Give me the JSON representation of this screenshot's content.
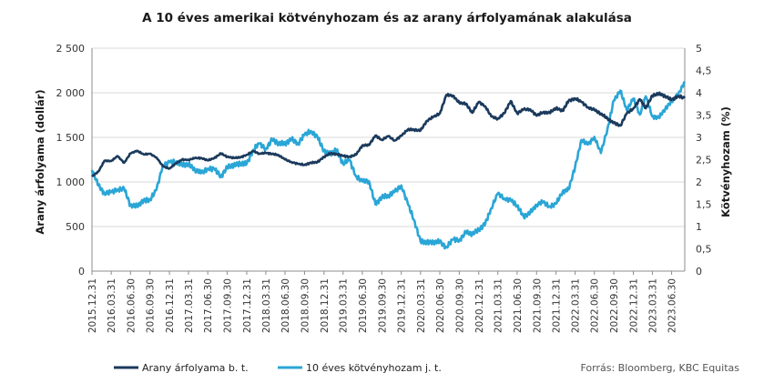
{
  "chart_data": {
    "type": "line",
    "title": "A 10 éves amerikai kötvényhozam és az arany árfolyamának alakulása",
    "ylabel_left": "Arany árfolyama (dollár)",
    "ylabel_right": "Kötvényhozam  (%)",
    "ylim_left": [
      0,
      2500
    ],
    "ylim_right": [
      0,
      5
    ],
    "yticks_left": [
      "0",
      "500",
      "1 000",
      "1 500",
      "2 000",
      "2 500"
    ],
    "yticks_right": [
      "0",
      "0,5",
      "1",
      "1,5",
      "2",
      "2,5",
      "3",
      "3,5",
      "4",
      "4,5",
      "5"
    ],
    "x_categories": [
      "2015.12.31",
      "2016.03.31",
      "2016.06.30",
      "2016.09.30",
      "2016.12.31",
      "2017.03.31",
      "2017.06.30",
      "2017.09.30",
      "2017.12.31",
      "2018.03.31",
      "2018.06.30",
      "2018.09.30",
      "2018.12.31",
      "2019.03.31",
      "2019.06.30",
      "2019.09.30",
      "2019.12.31",
      "2020.03.31",
      "2020.06.30",
      "2020.09.30",
      "2020.12.31",
      "2021.03.31",
      "2021.06.30",
      "2021.09.30",
      "2021.12.31",
      "2022.03.31",
      "2022.06.30",
      "2022.09.30",
      "2022.12.31",
      "2023.03.31",
      "2023.06.30"
    ],
    "grid": true,
    "legend_position": "bottom-left",
    "source": "Forrás: Bloomberg, KBC Equitas",
    "series": [
      {
        "name": "Arany árfolyama b. t.",
        "axis": "left",
        "color": "#1b3a5c",
        "points": [
          [
            "2015.12.31",
            1060
          ],
          [
            "2016.01.31",
            1118
          ],
          [
            "2016.02.28",
            1238
          ],
          [
            "2016.03.31",
            1235
          ],
          [
            "2016.04.30",
            1290
          ],
          [
            "2016.05.31",
            1215
          ],
          [
            "2016.06.30",
            1320
          ],
          [
            "2016.07.31",
            1350
          ],
          [
            "2016.08.31",
            1310
          ],
          [
            "2016.09.30",
            1315
          ],
          [
            "2016.10.31",
            1275
          ],
          [
            "2016.11.30",
            1175
          ],
          [
            "2016.12.31",
            1150
          ],
          [
            "2017.01.31",
            1210
          ],
          [
            "2017.02.28",
            1250
          ],
          [
            "2017.03.31",
            1248
          ],
          [
            "2017.04.30",
            1268
          ],
          [
            "2017.05.31",
            1268
          ],
          [
            "2017.06.30",
            1242
          ],
          [
            "2017.07.31",
            1268
          ],
          [
            "2017.08.31",
            1320
          ],
          [
            "2017.09.30",
            1282
          ],
          [
            "2017.10.31",
            1270
          ],
          [
            "2017.11.30",
            1275
          ],
          [
            "2017.12.31",
            1305
          ],
          [
            "2018.01.31",
            1345
          ],
          [
            "2018.02.28",
            1318
          ],
          [
            "2018.03.31",
            1325
          ],
          [
            "2018.04.30",
            1315
          ],
          [
            "2018.05.31",
            1300
          ],
          [
            "2018.06.30",
            1252
          ],
          [
            "2018.07.31",
            1223
          ],
          [
            "2018.08.31",
            1201
          ],
          [
            "2018.09.30",
            1192
          ],
          [
            "2018.10.31",
            1215
          ],
          [
            "2018.11.30",
            1222
          ],
          [
            "2018.12.31",
            1282
          ],
          [
            "2019.01.31",
            1320
          ],
          [
            "2019.02.28",
            1313
          ],
          [
            "2019.03.31",
            1292
          ],
          [
            "2019.04.30",
            1283
          ],
          [
            "2019.05.31",
            1305
          ],
          [
            "2019.06.30",
            1409
          ],
          [
            "2019.07.31",
            1413
          ],
          [
            "2019.08.31",
            1520
          ],
          [
            "2019.09.30",
            1472
          ],
          [
            "2019.10.31",
            1513
          ],
          [
            "2019.11.30",
            1464
          ],
          [
            "2019.12.31",
            1517
          ],
          [
            "2020.01.31",
            1589
          ],
          [
            "2020.02.29",
            1585
          ],
          [
            "2020.03.31",
            1577
          ],
          [
            "2020.04.30",
            1686
          ],
          [
            "2020.05.31",
            1730
          ],
          [
            "2020.06.30",
            1768
          ],
          [
            "2020.07.31",
            1975
          ],
          [
            "2020.08.31",
            1968
          ],
          [
            "2020.09.30",
            1887
          ],
          [
            "2020.10.31",
            1879
          ],
          [
            "2020.11.30",
            1776
          ],
          [
            "2020.12.31",
            1898
          ],
          [
            "2021.01.31",
            1848
          ],
          [
            "2021.02.28",
            1734
          ],
          [
            "2021.03.31",
            1708
          ],
          [
            "2021.04.30",
            1769
          ],
          [
            "2021.05.31",
            1907
          ],
          [
            "2021.06.30",
            1770
          ],
          [
            "2021.07.31",
            1814
          ],
          [
            "2021.08.31",
            1814
          ],
          [
            "2021.09.30",
            1743
          ],
          [
            "2021.10.31",
            1783
          ],
          [
            "2021.11.30",
            1775
          ],
          [
            "2021.12.31",
            1829
          ],
          [
            "2022.01.31",
            1797
          ],
          [
            "2022.02.28",
            1909
          ],
          [
            "2022.03.31",
            1937
          ],
          [
            "2022.04.30",
            1897
          ],
          [
            "2022.05.31",
            1838
          ],
          [
            "2022.06.30",
            1807
          ],
          [
            "2022.07.31",
            1766
          ],
          [
            "2022.08.31",
            1711
          ],
          [
            "2022.09.30",
            1661
          ],
          [
            "2022.10.31",
            1633
          ],
          [
            "2022.11.30",
            1768
          ],
          [
            "2022.12.31",
            1824
          ],
          [
            "2023.01.31",
            1928
          ],
          [
            "2023.02.28",
            1827
          ],
          [
            "2023.03.31",
            1969
          ],
          [
            "2023.04.30",
            1990
          ],
          [
            "2023.05.31",
            1963
          ],
          [
            "2023.06.30",
            1919
          ],
          [
            "2023.07.31",
            1965
          ],
          [
            "2023.08.31",
            1940
          ]
        ]
      },
      {
        "name": "10 éves kötvényhozam j. t.",
        "axis": "right",
        "color": "#2aa6d6",
        "points": [
          [
            "2015.12.31",
            2.27
          ],
          [
            "2016.01.31",
            1.92
          ],
          [
            "2016.02.28",
            1.74
          ],
          [
            "2016.03.31",
            1.77
          ],
          [
            "2016.04.30",
            1.83
          ],
          [
            "2016.05.31",
            1.85
          ],
          [
            "2016.06.30",
            1.47
          ],
          [
            "2016.07.31",
            1.46
          ],
          [
            "2016.08.31",
            1.58
          ],
          [
            "2016.09.30",
            1.6
          ],
          [
            "2016.10.31",
            1.83
          ],
          [
            "2016.11.30",
            2.38
          ],
          [
            "2016.12.31",
            2.44
          ],
          [
            "2017.01.31",
            2.45
          ],
          [
            "2017.02.28",
            2.39
          ],
          [
            "2017.03.31",
            2.39
          ],
          [
            "2017.04.30",
            2.28
          ],
          [
            "2017.05.31",
            2.2
          ],
          [
            "2017.06.30",
            2.3
          ],
          [
            "2017.07.31",
            2.29
          ],
          [
            "2017.08.31",
            2.12
          ],
          [
            "2017.09.30",
            2.33
          ],
          [
            "2017.10.31",
            2.38
          ],
          [
            "2017.11.30",
            2.41
          ],
          [
            "2017.12.31",
            2.41
          ],
          [
            "2018.01.31",
            2.72
          ],
          [
            "2018.02.28",
            2.86
          ],
          [
            "2018.03.31",
            2.74
          ],
          [
            "2018.04.30",
            2.95
          ],
          [
            "2018.05.31",
            2.86
          ],
          [
            "2018.06.30",
            2.86
          ],
          [
            "2018.07.31",
            2.96
          ],
          [
            "2018.08.31",
            2.86
          ],
          [
            "2018.09.30",
            3.06
          ],
          [
            "2018.10.31",
            3.14
          ],
          [
            "2018.11.30",
            3.01
          ],
          [
            "2018.12.31",
            2.69
          ],
          [
            "2019.01.31",
            2.63
          ],
          [
            "2019.02.28",
            2.72
          ],
          [
            "2019.03.31",
            2.41
          ],
          [
            "2019.04.30",
            2.5
          ],
          [
            "2019.05.31",
            2.13
          ],
          [
            "2019.06.30",
            2.01
          ],
          [
            "2019.07.31",
            2.02
          ],
          [
            "2019.08.31",
            1.5
          ],
          [
            "2019.09.30",
            1.66
          ],
          [
            "2019.10.31",
            1.69
          ],
          [
            "2019.11.30",
            1.78
          ],
          [
            "2019.12.31",
            1.92
          ],
          [
            "2020.01.31",
            1.51
          ],
          [
            "2020.02.29",
            1.15
          ],
          [
            "2020.03.31",
            0.67
          ],
          [
            "2020.04.30",
            0.64
          ],
          [
            "2020.05.31",
            0.65
          ],
          [
            "2020.06.30",
            0.66
          ],
          [
            "2020.07.31",
            0.53
          ],
          [
            "2020.08.31",
            0.71
          ],
          [
            "2020.09.30",
            0.69
          ],
          [
            "2020.10.31",
            0.87
          ],
          [
            "2020.11.30",
            0.84
          ],
          [
            "2020.12.31",
            0.92
          ],
          [
            "2021.01.31",
            1.07
          ],
          [
            "2021.02.28",
            1.41
          ],
          [
            "2021.03.31",
            1.74
          ],
          [
            "2021.04.30",
            1.63
          ],
          [
            "2021.05.31",
            1.59
          ],
          [
            "2021.06.30",
            1.47
          ],
          [
            "2021.07.31",
            1.22
          ],
          [
            "2021.08.31",
            1.31
          ],
          [
            "2021.09.30",
            1.49
          ],
          [
            "2021.10.31",
            1.55
          ],
          [
            "2021.11.30",
            1.45
          ],
          [
            "2021.12.31",
            1.51
          ],
          [
            "2022.01.31",
            1.78
          ],
          [
            "2022.02.28",
            1.83
          ],
          [
            "2022.03.31",
            2.34
          ],
          [
            "2022.04.30",
            2.94
          ],
          [
            "2022.05.31",
            2.84
          ],
          [
            "2022.06.30",
            3.01
          ],
          [
            "2022.07.31",
            2.65
          ],
          [
            "2022.08.31",
            3.19
          ],
          [
            "2022.09.30",
            3.83
          ],
          [
            "2022.10.31",
            4.05
          ],
          [
            "2022.11.30",
            3.61
          ],
          [
            "2022.12.31",
            3.87
          ],
          [
            "2023.01.31",
            3.51
          ],
          [
            "2023.02.28",
            3.92
          ],
          [
            "2023.03.31",
            3.47
          ],
          [
            "2023.04.30",
            3.44
          ],
          [
            "2023.05.31",
            3.64
          ],
          [
            "2023.06.30",
            3.81
          ],
          [
            "2023.07.31",
            3.96
          ],
          [
            "2023.08.31",
            4.25
          ]
        ]
      }
    ]
  }
}
